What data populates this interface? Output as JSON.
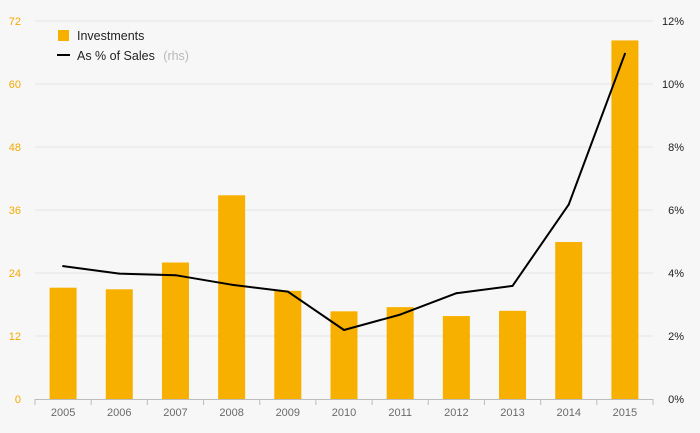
{
  "chart_data": {
    "type": "bar",
    "categories": [
      "2005",
      "2006",
      "2007",
      "2008",
      "2009",
      "2010",
      "2011",
      "2012",
      "2013",
      "2014",
      "2015"
    ],
    "series": [
      {
        "name": "Investments",
        "type": "bar",
        "axis": "left",
        "values": [
          21.2,
          20.9,
          26.0,
          38.8,
          20.6,
          16.7,
          17.5,
          15.8,
          16.8,
          29.9,
          68.3
        ]
      },
      {
        "name": "As % of Sales",
        "note": "(rhs)",
        "type": "line",
        "axis": "right",
        "values": [
          4.22,
          3.98,
          3.93,
          3.63,
          3.41,
          2.19,
          2.68,
          3.36,
          3.59,
          6.17,
          10.96
        ]
      }
    ],
    "ylim_left": [
      0,
      72
    ],
    "yticks_left": [
      "0",
      "12",
      "24",
      "36",
      "48",
      "60",
      "72"
    ],
    "ylim_right": [
      0,
      12
    ],
    "yticks_right": [
      "0%",
      "2%",
      "4%",
      "6%",
      "8%",
      "10%",
      "12%"
    ],
    "grid": true,
    "legend_position": "top-left",
    "colors": {
      "bar": "#f8b000",
      "line": "#000000",
      "left_axis_text": "#f4a900",
      "grid": "#e4e4e4"
    }
  }
}
